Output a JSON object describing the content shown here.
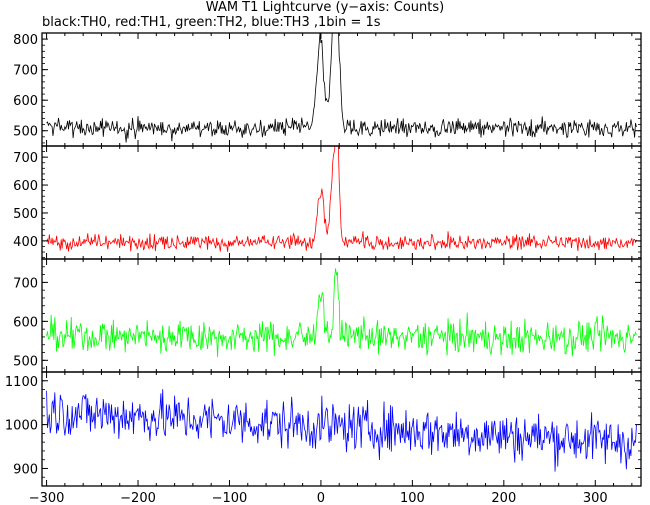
{
  "title": "WAM T1 Lightcurve (y−axis: Counts)",
  "subtitle": "black:TH0, red:TH1, green:TH2, blue:TH3 ,1bin = 1s",
  "chart_data": {
    "type": "line",
    "x_range": [
      -305,
      350
    ],
    "x_ticks": [
      -300,
      -200,
      -100,
      0,
      100,
      200,
      300
    ],
    "panels": [
      {
        "name": "TH0",
        "color": "#000000",
        "y_range": [
          450,
          820
        ],
        "y_ticks": [
          500,
          600,
          700,
          800
        ],
        "baseline": 510,
        "noise": 22,
        "peaks": [
          [
            0,
            680,
            3
          ],
          [
            -3,
            620,
            3
          ],
          [
            14,
            820,
            2.5
          ],
          [
            18,
            800,
            2.5
          ],
          [
            8,
            560,
            10
          ]
        ]
      },
      {
        "name": "TH1",
        "color": "#ff0000",
        "y_range": [
          335,
          740
        ],
        "y_ticks": [
          400,
          500,
          600,
          700
        ],
        "baseline": 395,
        "noise": 20,
        "peaks": [
          [
            0,
            580,
            3.5
          ],
          [
            14,
            660,
            3
          ],
          [
            18,
            720,
            2
          ]
        ]
      },
      {
        "name": "TH2",
        "color": "#00ff00",
        "y_range": [
          470,
          760
        ],
        "y_ticks": [
          500,
          600,
          700
        ],
        "baseline": 560,
        "noise": 30,
        "peaks": [
          [
            0,
            680,
            3
          ],
          [
            17,
            750,
            2
          ]
        ]
      },
      {
        "name": "TH3",
        "color": "#0000ff",
        "y_range": [
          860,
          1120
        ],
        "y_ticks": [
          900,
          1000,
          1100
        ],
        "baseline_start": 1030,
        "baseline_end": 960,
        "noise": 40,
        "peaks": []
      }
    ]
  }
}
